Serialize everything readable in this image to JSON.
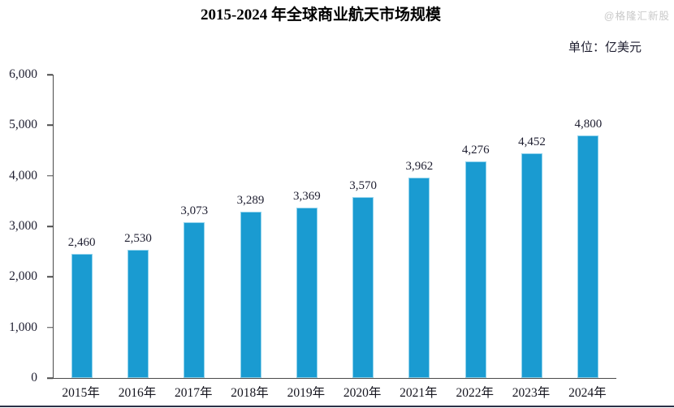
{
  "title": "2015-2024 年全球商业航天市场规模",
  "unit_label": "单位：亿美元",
  "watermark": "@格隆汇新股",
  "chart_data": {
    "type": "bar",
    "title": "2015-2024 年全球商业航天市场规模",
    "unit": "亿美元",
    "categories": [
      "2015年",
      "2016年",
      "2017年",
      "2018年",
      "2019年",
      "2020年",
      "2021年",
      "2022年",
      "2023年",
      "2024年"
    ],
    "values": [
      2460,
      2530,
      3073,
      3289,
      3369,
      3570,
      3962,
      4276,
      4452,
      4800
    ],
    "value_labels": [
      "2,460",
      "2,530",
      "3,073",
      "3,289",
      "3,369",
      "3,570",
      "3,962",
      "4,276",
      "4,452",
      "4,800"
    ],
    "xlabel": "",
    "ylabel": "",
    "ylim": [
      0,
      6000
    ],
    "ytick_interval": 1000,
    "ytick_labels": [
      "0",
      "1,000",
      "2,000",
      "3,000",
      "4,000",
      "5,000",
      "6,000"
    ],
    "grid": false,
    "legend_position": "none",
    "bar_color": "#1a9bd1",
    "bar_border_color": "#8fd2ec"
  },
  "colors": {
    "bar": "#1a9bd1",
    "bar_border": "#8fd2ec",
    "axis": "#4a4a4a",
    "text": "#1e1e30",
    "watermark": "#c9c9c9",
    "bottom_border": "#2b3148"
  }
}
